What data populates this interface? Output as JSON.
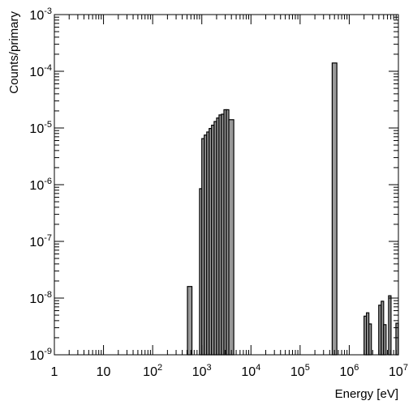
{
  "chart_data": {
    "type": "bar",
    "title": "",
    "xlabel": "Energy [eV]",
    "ylabel": "Counts/primary",
    "x_scale": "log",
    "y_scale": "log",
    "xlim": [
      1,
      10000000
    ],
    "ylim": [
      1e-09,
      0.001
    ],
    "grid": false,
    "legend": "none",
    "colors": {
      "fill": "#999999",
      "stroke": "#000000",
      "frame": "#000000",
      "background": "#ffffff"
    },
    "x_tick_labels": [
      {
        "value": 1,
        "base": "1",
        "exp": ""
      },
      {
        "value": 10,
        "base": "10",
        "exp": ""
      },
      {
        "value": 100,
        "base": "10",
        "exp": "2"
      },
      {
        "value": 1000,
        "base": "10",
        "exp": "3"
      },
      {
        "value": 10000,
        "base": "10",
        "exp": "4"
      },
      {
        "value": 100000,
        "base": "10",
        "exp": "5"
      },
      {
        "value": 1000000,
        "base": "10",
        "exp": "6"
      },
      {
        "value": 10000000,
        "base": "10",
        "exp": "7"
      }
    ],
    "y_tick_labels": [
      {
        "value": 1e-09,
        "base": "10",
        "exp": "-9"
      },
      {
        "value": 1e-08,
        "base": "10",
        "exp": "-8"
      },
      {
        "value": 1e-07,
        "base": "10",
        "exp": "-7"
      },
      {
        "value": 1e-06,
        "base": "10",
        "exp": "-6"
      },
      {
        "value": 1e-05,
        "base": "10",
        "exp": "-5"
      },
      {
        "value": 0.0001,
        "base": "10",
        "exp": "-4"
      },
      {
        "value": 0.001,
        "base": "10",
        "exp": "-3"
      }
    ],
    "bins": [
      {
        "x0": 510,
        "x1": 630,
        "y": 1.6e-08
      },
      {
        "x0": 900,
        "x1": 1000,
        "y": 8.5e-07
      },
      {
        "x0": 1000,
        "x1": 1120,
        "y": 6.5e-06
      },
      {
        "x0": 1120,
        "x1": 1260,
        "y": 7.5e-06
      },
      {
        "x0": 1260,
        "x1": 1410,
        "y": 8.5e-06
      },
      {
        "x0": 1410,
        "x1": 1580,
        "y": 9.8e-06
      },
      {
        "x0": 1580,
        "x1": 1780,
        "y": 1.12e-05
      },
      {
        "x0": 1780,
        "x1": 2000,
        "y": 1.3e-05
      },
      {
        "x0": 2000,
        "x1": 2240,
        "y": 1.5e-05
      },
      {
        "x0": 2240,
        "x1": 2510,
        "y": 1.7e-05
      },
      {
        "x0": 2510,
        "x1": 2820,
        "y": 1.75e-05
      },
      {
        "x0": 2820,
        "x1": 3160,
        "y": 2.1e-05
      },
      {
        "x0": 3160,
        "x1": 3550,
        "y": 2.1e-05
      },
      {
        "x0": 3550,
        "x1": 4470,
        "y": 1.4e-05
      },
      {
        "x0": 450000,
        "x1": 560000,
        "y": 0.00014
      },
      {
        "x0": 2000000,
        "x1": 2240000,
        "y": 4.8e-09
      },
      {
        "x0": 2240000,
        "x1": 2510000,
        "y": 5.5e-09
      },
      {
        "x0": 2510000,
        "x1": 2820000,
        "y": 3.5e-09
      },
      {
        "x0": 3980000,
        "x1": 4470000,
        "y": 7.5e-09
      },
      {
        "x0": 4470000,
        "x1": 5010000,
        "y": 8.8e-09
      },
      {
        "x0": 5010000,
        "x1": 5620000,
        "y": 3.4e-09
      },
      {
        "x0": 6310000,
        "x1": 7080000,
        "y": 1.1e-08
      },
      {
        "x0": 8910000,
        "x1": 10000000,
        "y": 3.6e-09
      }
    ]
  }
}
